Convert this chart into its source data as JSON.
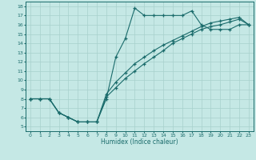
{
  "xlabel": "Humidex (Indice chaleur)",
  "xlim": [
    -0.5,
    23.5
  ],
  "ylim": [
    4.5,
    18.5
  ],
  "xticks": [
    0,
    1,
    2,
    3,
    4,
    5,
    6,
    7,
    8,
    9,
    10,
    11,
    12,
    13,
    14,
    15,
    16,
    17,
    18,
    19,
    20,
    21,
    22,
    23
  ],
  "yticks": [
    5,
    6,
    7,
    8,
    9,
    10,
    11,
    12,
    13,
    14,
    15,
    16,
    17,
    18
  ],
  "bg_color": "#c5e8e5",
  "line_color": "#1a6b6b",
  "grid_color": "#a8d0cc",
  "line1_x": [
    0,
    1,
    2,
    3,
    4,
    5,
    6,
    7,
    8,
    9,
    10,
    11,
    12,
    13,
    14,
    15,
    16,
    17,
    18,
    19,
    20,
    21,
    22,
    23
  ],
  "line1_y": [
    8.0,
    8.0,
    8.0,
    6.5,
    6.0,
    5.5,
    5.5,
    5.5,
    8.0,
    12.5,
    14.5,
    17.8,
    17.0,
    17.0,
    17.0,
    17.0,
    17.0,
    17.5,
    16.0,
    15.5,
    15.5,
    15.5,
    16.0,
    16.0
  ],
  "line2_x": [
    0,
    1,
    2,
    3,
    4,
    5,
    6,
    7,
    8,
    9,
    10,
    11,
    12,
    13,
    14,
    15,
    16,
    17,
    18,
    19,
    20,
    21,
    22,
    23
  ],
  "line2_y": [
    8.0,
    8.0,
    8.0,
    6.5,
    6.0,
    5.5,
    5.5,
    5.5,
    8.5,
    9.8,
    10.8,
    11.8,
    12.5,
    13.2,
    13.8,
    14.3,
    14.8,
    15.3,
    15.8,
    16.2,
    16.4,
    16.6,
    16.8,
    16.0
  ],
  "line3_x": [
    0,
    1,
    2,
    3,
    4,
    5,
    6,
    7,
    8,
    9,
    10,
    11,
    12,
    13,
    14,
    15,
    16,
    17,
    18,
    19,
    20,
    21,
    22,
    23
  ],
  "line3_y": [
    8.0,
    8.0,
    8.0,
    6.5,
    6.0,
    5.5,
    5.5,
    5.5,
    8.2,
    9.2,
    10.2,
    11.0,
    11.8,
    12.5,
    13.2,
    14.0,
    14.5,
    15.0,
    15.5,
    15.8,
    16.0,
    16.3,
    16.6,
    16.0
  ]
}
